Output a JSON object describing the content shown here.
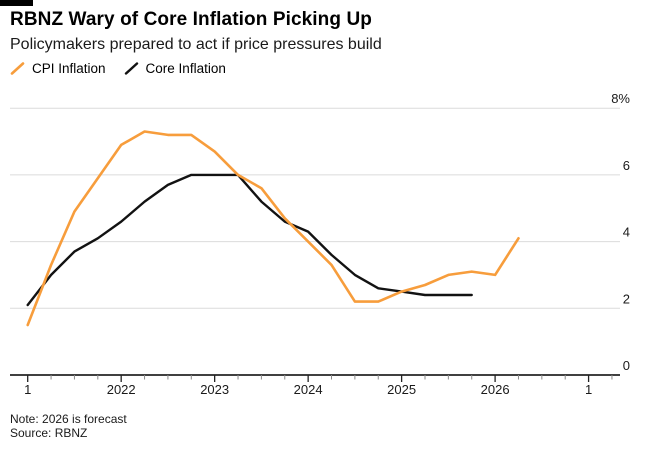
{
  "header": {
    "title": "RBNZ Wary of Core Inflation Picking Up",
    "subtitle": "Policymakers prepared to act if price pressures build"
  },
  "footnotes": {
    "note": "Note: 2026 is forecast",
    "source": "Source: RBNZ"
  },
  "colors": {
    "cpi_line": "#F79D3C",
    "core_line": "#121212",
    "gridline": "#DBDBDB",
    "axis": "#000000",
    "minor_tick": "#8a8a8a",
    "major_tick": "#222222",
    "label_text": "#1a1a1a"
  },
  "chart_data": {
    "type": "line",
    "title": "RBNZ Wary of Core Inflation Picking Up",
    "subtitle": "Policymakers prepared to act if price pressures build",
    "x_unit": "quarter",
    "x_categories": [
      "2021Q1",
      "2021Q2",
      "2021Q3",
      "2021Q4",
      "2022Q1",
      "2022Q2",
      "2022Q3",
      "2022Q4",
      "2023Q1",
      "2023Q2",
      "2023Q3",
      "2023Q4",
      "2024Q1",
      "2024Q2",
      "2024Q3",
      "2024Q4",
      "2025Q1",
      "2025Q2",
      "2025Q3",
      "2025Q4",
      "2026Q1",
      "2026Q2"
    ],
    "x_tick_labels": [
      "1",
      "2022",
      "2023",
      "2024",
      "2025",
      "2026",
      "1"
    ],
    "yticks": [
      0,
      2,
      4,
      6,
      8
    ],
    "ytick_labels": [
      "0",
      "2",
      "4",
      "6",
      "8%"
    ],
    "ylim": [
      0,
      8
    ],
    "grid": "horizontal",
    "legend_position": "top-left",
    "series": [
      {
        "name": "CPI Inflation",
        "color": "#F79D3C",
        "values": [
          1.5,
          3.3,
          4.9,
          5.9,
          6.9,
          7.3,
          7.2,
          7.2,
          6.7,
          6.0,
          5.6,
          4.7,
          4.0,
          3.3,
          2.2,
          2.2,
          2.5,
          2.7,
          3.0,
          3.1,
          3.0,
          4.1
        ]
      },
      {
        "name": "Core Inflation",
        "color": "#121212",
        "values": [
          2.1,
          3.0,
          3.7,
          4.1,
          4.6,
          5.2,
          5.7,
          6.0,
          6.0,
          6.0,
          5.2,
          4.6,
          4.3,
          3.6,
          3.0,
          2.6,
          2.5,
          2.4,
          2.4,
          2.4
        ]
      }
    ]
  }
}
